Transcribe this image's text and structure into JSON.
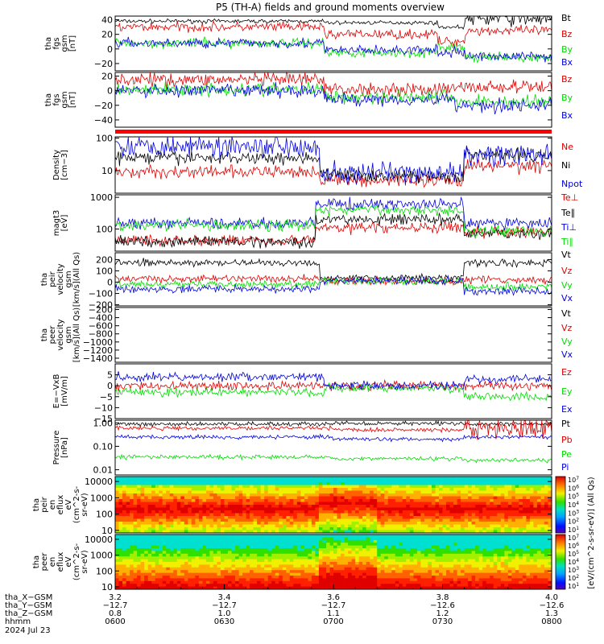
{
  "title": "P5 (TH-A) fields and ground moments overview",
  "colors": {
    "black": "#000000",
    "red": "#e00000",
    "green": "#00dd00",
    "blue": "#0000e0",
    "bar_red": "#ff0000"
  },
  "chart_data": [
    {
      "type": "line",
      "name": "fgs_gsm",
      "ylabel": [
        "tha",
        "fgs",
        "gsm",
        "[nT]"
      ],
      "ylim": [
        -30,
        45
      ],
      "yticks": [
        "40",
        "20",
        "0",
        "−20"
      ],
      "ytick_values": [
        40,
        20,
        0,
        -20
      ],
      "legend": [
        {
          "label": "Bt",
          "color": "black"
        },
        {
          "label": "Bz",
          "color": "red"
        },
        {
          "label": "By",
          "color": "green"
        },
        {
          "label": "Bx",
          "color": "blue"
        }
      ]
    },
    {
      "type": "line",
      "name": "fgs_gsm_mgse",
      "ylabel": [
        "tha",
        "fgs",
        "gsm",
        "[nT]"
      ],
      "ylim": [
        -50,
        25
      ],
      "yticks": [
        "20",
        "0",
        "−20",
        "−40"
      ],
      "ytick_values": [
        20,
        0,
        -20,
        -40
      ],
      "legend": [
        {
          "label": "Bz",
          "color": "red"
        },
        {
          "label": "By",
          "color": "green"
        },
        {
          "label": "Bx",
          "color": "blue"
        }
      ]
    },
    {
      "type": "line",
      "name": "density",
      "scale": "log",
      "ylabel": [
        "Density",
        "[cm−3]"
      ],
      "ylim": [
        2,
        110
      ],
      "yticks": [
        "100",
        "10"
      ],
      "ytick_values": [
        100,
        10
      ],
      "legend": [
        {
          "label": "Ne",
          "color": "red"
        },
        {
          "label": "Ni",
          "color": "black"
        },
        {
          "label": "Npot",
          "color": "blue"
        }
      ]
    },
    {
      "type": "line",
      "name": "temperature",
      "scale": "log",
      "ylabel": [
        "magt3",
        "[eV]"
      ],
      "ylim": [
        20,
        1200
      ],
      "yticks": [
        "1000",
        "100"
      ],
      "ytick_values": [
        1000,
        100
      ],
      "legend": [
        {
          "label": "Te⊥",
          "color": "red"
        },
        {
          "label": "Te∥",
          "color": "black"
        },
        {
          "label": "Ti⊥",
          "color": "blue"
        },
        {
          "label": "Ti∥",
          "color": "green"
        }
      ]
    },
    {
      "type": "line",
      "name": "peir_velocity",
      "ylabel": [
        "tha",
        "peir",
        "velocity",
        "gsm",
        "[km/s](All Qs)"
      ],
      "ylim": [
        -210,
        260
      ],
      "yticks": [
        "200",
        "100",
        "0",
        "−100",
        "−200"
      ],
      "ytick_values": [
        200,
        100,
        0,
        -100,
        -200
      ],
      "legend": [
        {
          "label": "Vt",
          "color": "black"
        },
        {
          "label": "Vz",
          "color": "red"
        },
        {
          "label": "Vy",
          "color": "green"
        },
        {
          "label": "Vx",
          "color": "blue"
        }
      ]
    },
    {
      "type": "line",
      "name": "peer_velocity",
      "ylabel": [
        "tha",
        "peer",
        "velocity",
        "gsm",
        "[km/s](All Qs)"
      ],
      "ylim": [
        -1500,
        -150
      ],
      "yticks": [
        "−200",
        "−400",
        "−600",
        "−800",
        "−1000",
        "−1200",
        "−1400"
      ],
      "ytick_values": [
        -200,
        -400,
        -600,
        -800,
        -1000,
        -1200,
        -1400
      ],
      "legend": [
        {
          "label": "Vt",
          "color": "black"
        },
        {
          "label": "Vz",
          "color": "red"
        },
        {
          "label": "Vy",
          "color": "green"
        },
        {
          "label": "Vx",
          "color": "blue"
        }
      ]
    },
    {
      "type": "line",
      "name": "efield",
      "ylabel": [
        "E=−VxB",
        "[mV/m]"
      ],
      "ylim": [
        -15,
        10
      ],
      "yticks": [
        "5",
        "0",
        "−5",
        "−10",
        "−15"
      ],
      "ytick_values": [
        5,
        0,
        -5,
        -10,
        -15
      ],
      "legend": [
        {
          "label": "Ez",
          "color": "red"
        },
        {
          "label": "Ey",
          "color": "green"
        },
        {
          "label": "Ex",
          "color": "blue"
        }
      ]
    },
    {
      "type": "line",
      "name": "pressure",
      "scale": "log",
      "ylabel": [
        "Pressure",
        "[nPa]"
      ],
      "ylim": [
        0.006,
        1.3
      ],
      "yticks": [
        "1.00",
        "0.10",
        "0.01"
      ],
      "ytick_values": [
        1,
        0.1,
        0.01
      ],
      "legend": [
        {
          "label": "Pt",
          "color": "black"
        },
        {
          "label": "Pb",
          "color": "red"
        },
        {
          "label": "Pe",
          "color": "green"
        },
        {
          "label": "Pi",
          "color": "blue"
        }
      ]
    },
    {
      "type": "heatmap",
      "name": "peir_en_eflux",
      "scale": "log",
      "ylabel": [
        "tha",
        "peir",
        "en",
        "eflux",
        "eV",
        "(cm^2-s-",
        "sr-eV)"
      ],
      "ylim": [
        7,
        20000
      ],
      "yticks": [
        "10000",
        "1000",
        "100",
        "10"
      ],
      "ytick_values": [
        10000,
        1000,
        100,
        10
      ]
    },
    {
      "type": "heatmap",
      "name": "peer_en_eflux",
      "scale": "log",
      "ylabel": [
        "tha",
        "peer",
        "en",
        "eflux",
        "eV",
        "(cm^2-s-",
        "sr-eV)"
      ],
      "ylim": [
        7,
        20000
      ],
      "yticks": [
        "10000",
        "1000",
        "100",
        "10"
      ],
      "ytick_values": [
        10000,
        1000,
        100,
        10
      ]
    }
  ],
  "colorbar": {
    "label": "[eV/(cm^2-s-sr-eV)] (All Qs)",
    "ticks": [
      "10^7",
      "10^6",
      "10^5",
      "10^4",
      "10^3",
      "10^2",
      "10^1"
    ]
  },
  "xaxis": {
    "row_labels": [
      "tha_X−GSM",
      "tha_Y−GSM",
      "tha_Z−GSM",
      "hhmm",
      "2024 Jul 23"
    ],
    "ticks": [
      {
        "x": "3.2",
        "y": "−12.7",
        "z": "0.8",
        "t": "0600"
      },
      {
        "x": "3.4",
        "y": "−12.7",
        "z": "1.0",
        "t": "0630"
      },
      {
        "x": "3.6",
        "y": "−12.7",
        "z": "1.1",
        "t": "0700"
      },
      {
        "x": "3.8",
        "y": "−12.6",
        "z": "1.2",
        "t": "0730"
      },
      {
        "x": "4.0",
        "y": "−12.6",
        "z": "1.3",
        "t": "0800"
      }
    ]
  }
}
